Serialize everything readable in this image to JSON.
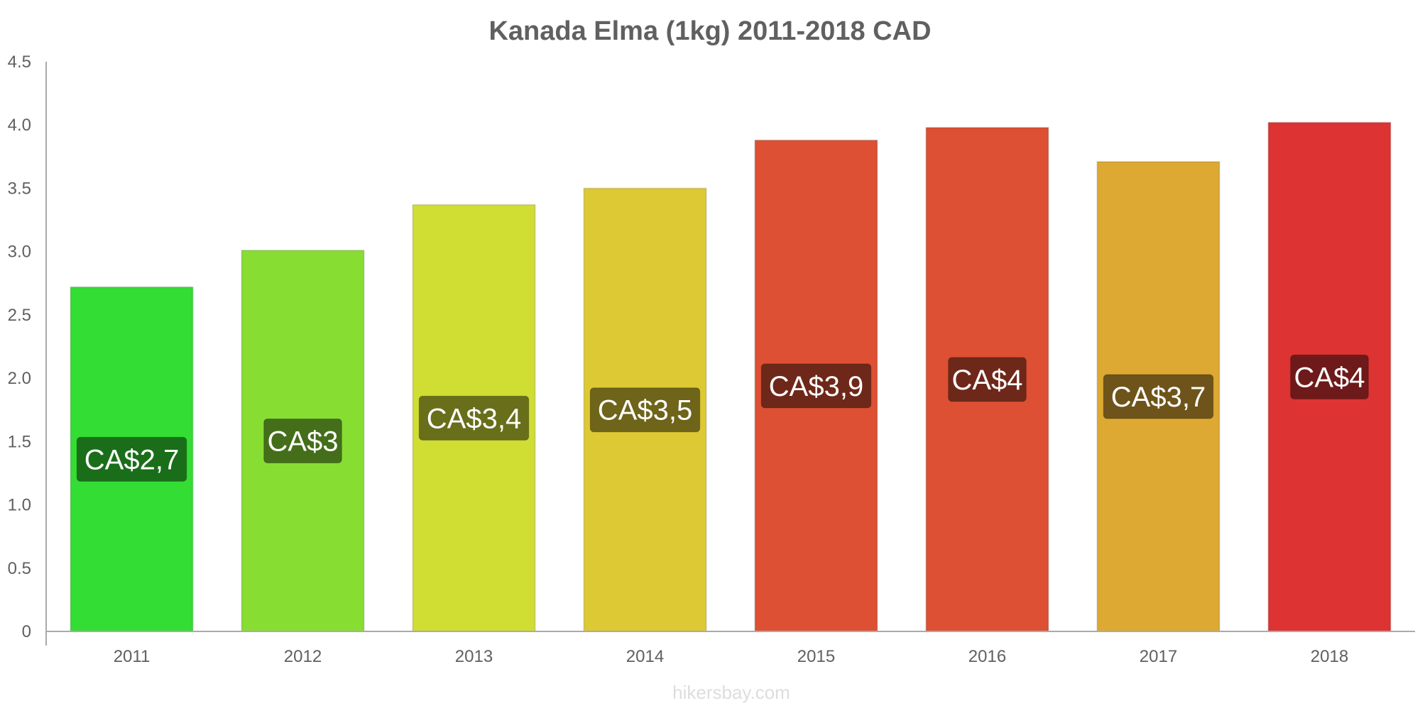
{
  "chart_data": {
    "type": "bar",
    "title": "Kanada Elma (1kg) 2011-2018 CAD",
    "xlabel": "",
    "ylabel": "",
    "ylim": [
      0,
      4.5
    ],
    "yticks": [
      "0",
      "0.5",
      "1.0",
      "1.5",
      "2.0",
      "2.5",
      "3.0",
      "3.5",
      "4.0",
      "4.5"
    ],
    "yticks_values": [
      0,
      0.5,
      1.0,
      1.5,
      2.0,
      2.5,
      3.0,
      3.5,
      4.0,
      4.5
    ],
    "categories": [
      "2011",
      "2012",
      "2013",
      "2014",
      "2015",
      "2016",
      "2017",
      "2018"
    ],
    "values": [
      2.72,
      3.01,
      3.37,
      3.5,
      3.88,
      3.98,
      3.71,
      4.02
    ],
    "data_labels": [
      "CA$2,7",
      "CA$3",
      "CA$3,4",
      "CA$3,5",
      "CA$3,9",
      "CA$4",
      "CA$3,7",
      "CA$4"
    ],
    "bar_colors": [
      "#33dd33",
      "#88dd33",
      "#d0dd33",
      "#ddc933",
      "#dd5033",
      "#dd5033",
      "#dda933",
      "#dd3333"
    ],
    "label_bg_colors": [
      "#1a6e1a",
      "#446e1a",
      "#686e1a",
      "#6e641a",
      "#6e281a",
      "#6e281a",
      "#6e541a",
      "#6e1a1a"
    ],
    "grid": false,
    "legend": "none"
  },
  "watermark": "hikersbay.com"
}
